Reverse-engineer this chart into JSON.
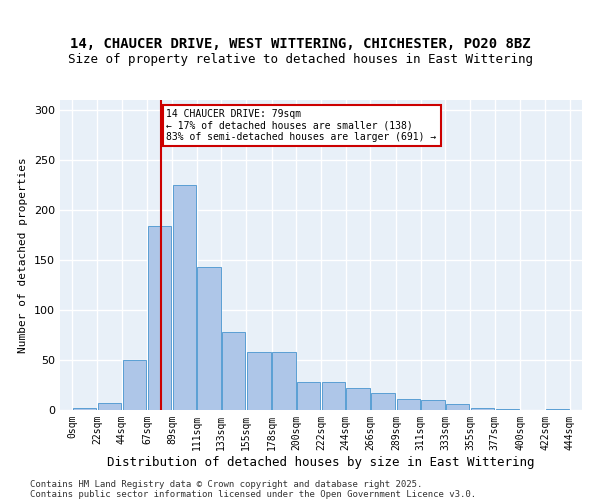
{
  "title": "14, CHAUCER DRIVE, WEST WITTERING, CHICHESTER, PO20 8BZ",
  "subtitle": "Size of property relative to detached houses in East Wittering",
  "xlabel": "Distribution of detached houses by size in East Wittering",
  "ylabel": "Number of detached properties",
  "bar_color": "#aec6e8",
  "bar_edge_color": "#5a9fd4",
  "background_color": "#e8f0f8",
  "grid_color": "#ffffff",
  "property_size": 79,
  "property_line_color": "#cc0000",
  "annotation_text": "14 CHAUCER DRIVE: 79sqm\n← 17% of detached houses are smaller (138)\n83% of semi-detached houses are larger (691) →",
  "annotation_box_color": "#ffffff",
  "annotation_box_edge": "#cc0000",
  "footer_text": "Contains HM Land Registry data © Crown copyright and database right 2025.\nContains public sector information licensed under the Open Government Licence v3.0.",
  "bins": [
    0,
    22,
    44,
    67,
    89,
    111,
    133,
    155,
    178,
    200,
    222,
    244,
    266,
    289,
    311,
    333,
    355,
    377,
    400,
    422,
    444
  ],
  "bin_labels": [
    "0sqm",
    "22sqm",
    "44sqm",
    "67sqm",
    "89sqm",
    "111sqm",
    "133sqm",
    "155sqm",
    "178sqm",
    "200sqm",
    "222sqm",
    "244sqm",
    "266sqm",
    "289sqm",
    "311sqm",
    "333sqm",
    "355sqm",
    "377sqm",
    "400sqm",
    "422sqm",
    "444sqm"
  ],
  "values": [
    2,
    7,
    50,
    184,
    225,
    143,
    78,
    58,
    58,
    28,
    28,
    22,
    17,
    11,
    10,
    6,
    2,
    1,
    0,
    1
  ],
  "ylim": [
    0,
    310
  ],
  "yticks": [
    0,
    50,
    100,
    150,
    200,
    250,
    300
  ]
}
